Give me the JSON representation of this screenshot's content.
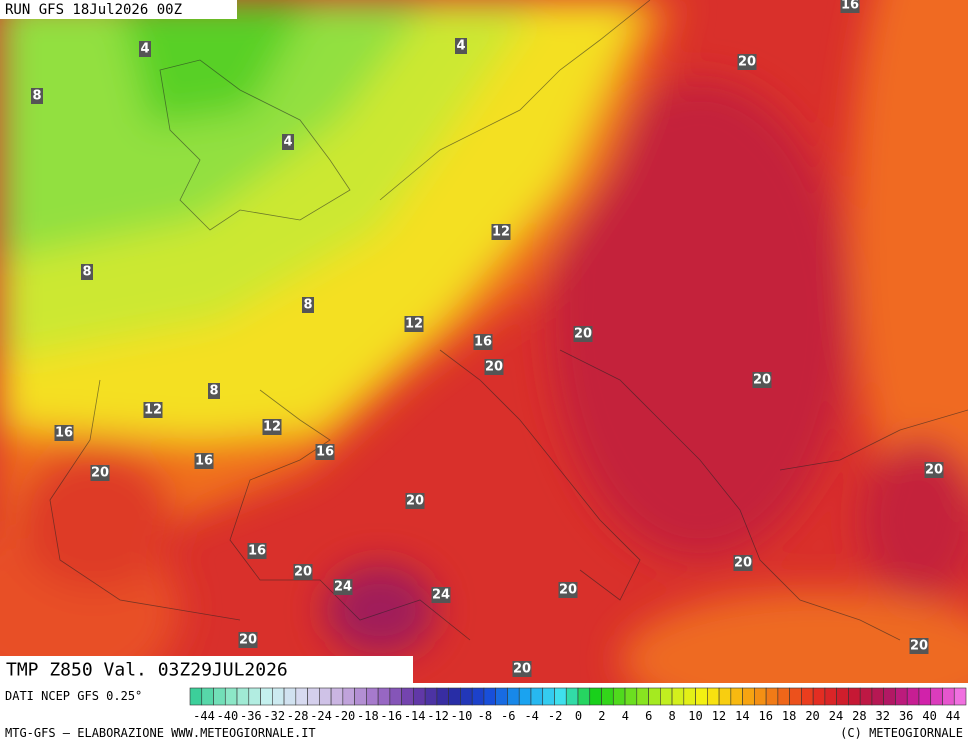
{
  "header": {
    "run": "RUN GFS 18Jul2026 00Z"
  },
  "title": "TMP Z850 Val. 03Z29JUL2026",
  "contour_labels": [
    "16",
    "4",
    "4",
    "20",
    "8",
    "4",
    "12",
    "8",
    "8",
    "12",
    "20",
    "16",
    "20",
    "20",
    "8",
    "12",
    "12",
    "16",
    "16",
    "16",
    "20",
    "20",
    "20",
    "16",
    "20",
    "20",
    "24",
    "24",
    "20",
    "20",
    "20",
    "20"
  ],
  "legend": {
    "source": "DATI NCEP GFS 0.25°",
    "labels": [
      "-44",
      "-40",
      "-36",
      "-32",
      "-28",
      "-24",
      "-20",
      "-18",
      "-16",
      "-14",
      "-12",
      "-10",
      "-8",
      "-6",
      "-4",
      "-2",
      "0",
      "2",
      "4",
      "6",
      "8",
      "10",
      "12",
      "14",
      "16",
      "18",
      "20",
      "24",
      "28",
      "32",
      "36",
      "40",
      "44"
    ]
  },
  "footer": {
    "left": "MTG-GFS — ELABORAZIONE WWW.METEOGIORNALE.IT",
    "right": "(C) METEOGIORNALE"
  }
}
